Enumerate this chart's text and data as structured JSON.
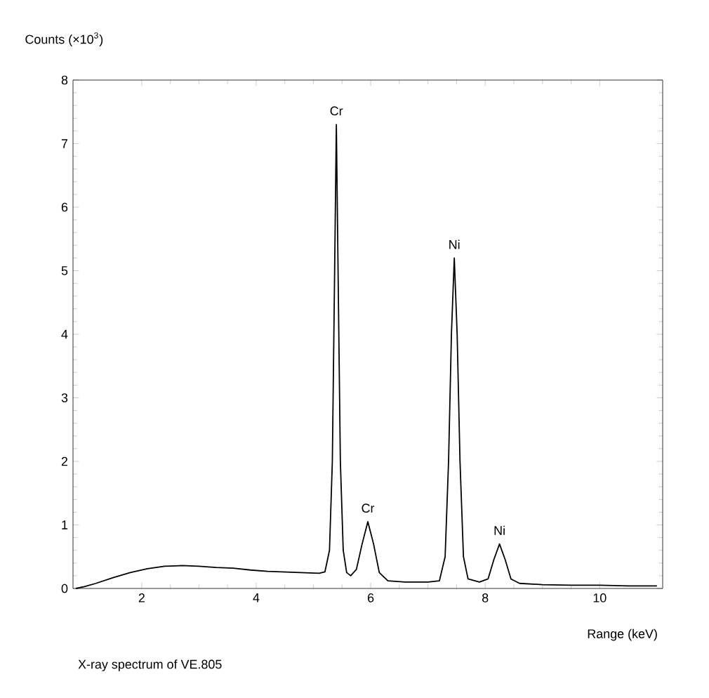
{
  "chart_data": {
    "type": "line",
    "title": "X-ray spectrum of VE.805",
    "xlabel": "Range (keV)",
    "ylabel": "Counts (×10$^{3}$)",
    "x": [
      0.85,
      1.0,
      1.2,
      1.5,
      1.8,
      2.1,
      2.4,
      2.7,
      3.0,
      3.3,
      3.6,
      3.9,
      4.2,
      4.5,
      4.8,
      5.1,
      5.2,
      5.28,
      5.33,
      5.37,
      5.4,
      5.43,
      5.47,
      5.52,
      5.58,
      5.65,
      5.75,
      5.85,
      5.95,
      6.05,
      6.15,
      6.3,
      6.6,
      7.0,
      7.2,
      7.3,
      7.36,
      7.41,
      7.46,
      7.51,
      7.56,
      7.62,
      7.7,
      7.9,
      8.05,
      8.15,
      8.25,
      8.35,
      8.45,
      8.6,
      9.0,
      9.5,
      10.0,
      10.5,
      11.0
    ],
    "series": [
      {
        "color": "#000000",
        "values": [
          0.0,
          0.03,
          0.08,
          0.17,
          0.25,
          0.31,
          0.35,
          0.36,
          0.35,
          0.33,
          0.32,
          0.29,
          0.27,
          0.26,
          0.25,
          0.24,
          0.26,
          0.6,
          2.0,
          5.0,
          7.3,
          5.0,
          2.0,
          0.6,
          0.25,
          0.2,
          0.3,
          0.7,
          1.05,
          0.7,
          0.25,
          0.12,
          0.1,
          0.1,
          0.12,
          0.5,
          2.0,
          4.0,
          5.2,
          4.0,
          2.0,
          0.5,
          0.15,
          0.1,
          0.15,
          0.45,
          0.7,
          0.45,
          0.15,
          0.08,
          0.06,
          0.05,
          0.05,
          0.04,
          0.04
        ]
      }
    ],
    "xlim": [
      0.8,
      11.1
    ],
    "ylim": [
      0,
      8
    ],
    "xticks": [
      2,
      4,
      6,
      8,
      10
    ],
    "yticks": [
      0,
      1,
      2,
      3,
      4,
      5,
      6,
      7,
      8
    ],
    "annotations": [
      {
        "text": "Cr",
        "x": 5.4,
        "y": 7.3
      },
      {
        "text": "Cr",
        "x": 5.95,
        "y": 1.05
      },
      {
        "text": "Ni",
        "x": 7.46,
        "y": 5.2
      },
      {
        "text": "Ni",
        "x": 8.25,
        "y": 0.7
      }
    ]
  }
}
